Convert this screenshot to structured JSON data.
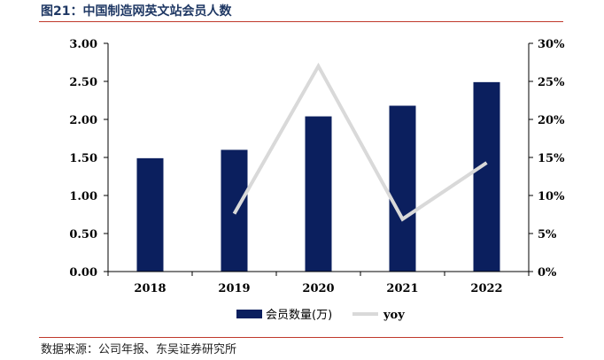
{
  "figure": {
    "title": "图21：中国制造网英文站会员人数",
    "source": "数据来源：公司年报、东吴证券研究所"
  },
  "colors": {
    "bar": "#0b1f5e",
    "line": "#d9d9d9",
    "axis": "#000000",
    "title": "#1f3864",
    "rule": "#c0392b"
  },
  "chart_data": {
    "type": "bar",
    "categories": [
      "2018",
      "2019",
      "2020",
      "2021",
      "2022"
    ],
    "series": [
      {
        "name": "会员数量(万)",
        "type": "bar",
        "axis": "left",
        "values": [
          1.49,
          1.6,
          2.04,
          2.18,
          2.49
        ]
      },
      {
        "name": "yoy",
        "type": "line",
        "axis": "right",
        "values": [
          null,
          7.6,
          27.0,
          6.9,
          14.3
        ]
      }
    ],
    "y_left": {
      "lim": [
        0,
        3
      ],
      "ticks": [
        "0.00",
        "0.50",
        "1.00",
        "1.50",
        "2.00",
        "2.50",
        "3.00"
      ]
    },
    "y_right": {
      "lim": [
        0,
        30
      ],
      "ticks": [
        "0%",
        "5%",
        "10%",
        "15%",
        "20%",
        "25%",
        "30%"
      ]
    },
    "grid": false,
    "legend": "bottom"
  }
}
